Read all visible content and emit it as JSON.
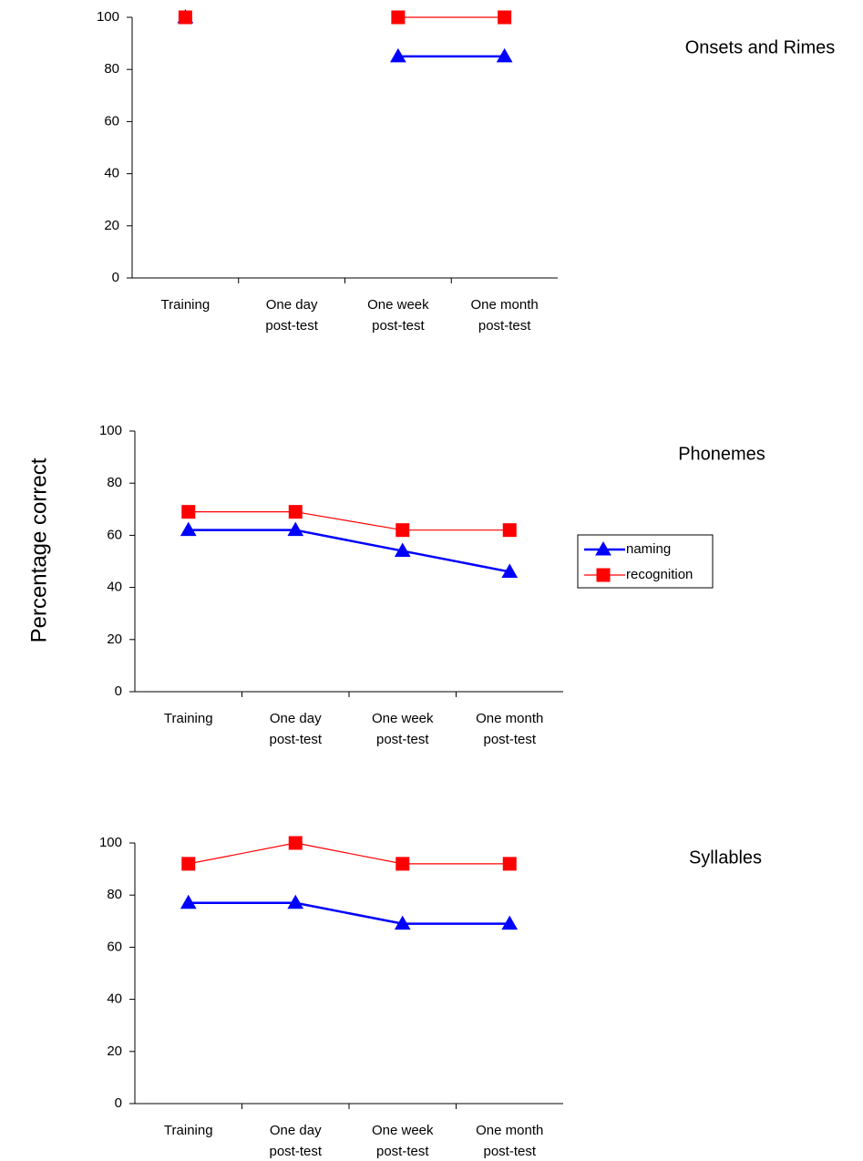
{
  "y_axis_label": "Percentage correct",
  "legend": {
    "entries": [
      {
        "label": "naming",
        "color": "#0000FF",
        "marker": "triangle"
      },
      {
        "label": "recognition",
        "color": "#FF0000",
        "marker": "square"
      }
    ]
  },
  "chart_data": [
    {
      "type": "line",
      "title": "Onsets and Rimes",
      "categories": [
        [
          "Training"
        ],
        [
          "One day",
          "post-test"
        ],
        [
          "One week",
          "post-test"
        ],
        [
          "One month",
          "post-test"
        ]
      ],
      "ylim": [
        0,
        100
      ],
      "yticks": [
        0,
        20,
        40,
        60,
        80,
        100
      ],
      "series": [
        {
          "name": "naming",
          "color": "#0000FF",
          "marker": "triangle",
          "values": [
            100,
            null,
            85,
            85
          ]
        },
        {
          "name": "recognition",
          "color": "#FF0000",
          "marker": "square",
          "values": [
            100,
            null,
            100,
            100
          ]
        }
      ]
    },
    {
      "type": "line",
      "title": "Phonemes",
      "categories": [
        [
          "Training"
        ],
        [
          "One day",
          "post-test"
        ],
        [
          "One week",
          "post-test"
        ],
        [
          "One month",
          "post-test"
        ]
      ],
      "ylim": [
        0,
        100
      ],
      "yticks": [
        0,
        20,
        40,
        60,
        80,
        100
      ],
      "series": [
        {
          "name": "naming",
          "color": "#0000FF",
          "marker": "triangle",
          "values": [
            62,
            62,
            54,
            46
          ]
        },
        {
          "name": "recognition",
          "color": "#FF0000",
          "marker": "square",
          "values": [
            69,
            69,
            62,
            62
          ]
        }
      ]
    },
    {
      "type": "line",
      "title": "Syllables",
      "categories": [
        [
          "Training"
        ],
        [
          "One day",
          "post-test"
        ],
        [
          "One week",
          "post-test"
        ],
        [
          "One month",
          "post-test"
        ]
      ],
      "ylim": [
        0,
        100
      ],
      "yticks": [
        0,
        20,
        40,
        60,
        80,
        100
      ],
      "series": [
        {
          "name": "naming",
          "color": "#0000FF",
          "marker": "triangle",
          "values": [
            77,
            77,
            69,
            69
          ]
        },
        {
          "name": "recognition",
          "color": "#FF0000",
          "marker": "square",
          "values": [
            92,
            100,
            92,
            92
          ]
        }
      ]
    }
  ]
}
